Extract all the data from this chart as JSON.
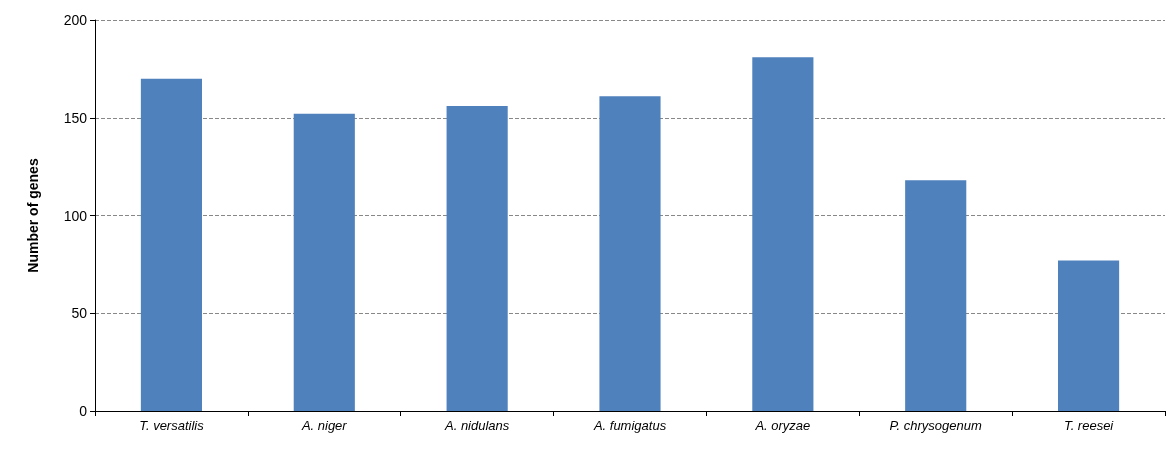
{
  "chart_data": {
    "type": "bar",
    "ylabel": "Number of genes",
    "categories": [
      "T. versatilis",
      "A. niger",
      "A. nidulans",
      "A. fumigatus",
      "A. oryzae",
      "P. chrysogenum",
      "T. reesei"
    ],
    "values": [
      170,
      152,
      156,
      161,
      181,
      118,
      77
    ],
    "color": "#4f81bd",
    "ylim": [
      0,
      200
    ],
    "yticks": [
      0,
      50,
      100,
      150,
      200
    ],
    "grid": "y"
  }
}
